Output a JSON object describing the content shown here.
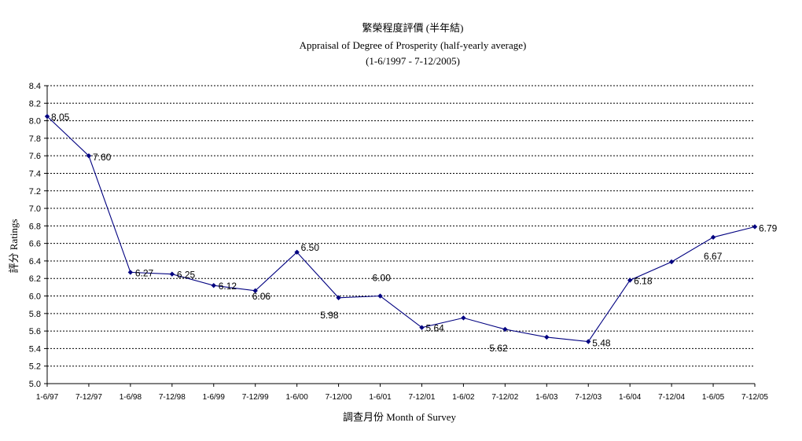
{
  "chart_data": {
    "type": "line",
    "title": "繁榮程度評價 (半年結)",
    "subtitle": "Appraisal of Degree of Prosperity (half-yearly average)",
    "subtitle2": "(1-6/1997 - 7-12/2005)",
    "xlabel": "調查月份 Month of Survey",
    "ylabel": "評分 Ratings",
    "ylim": [
      5.0,
      8.4
    ],
    "ytick_step": 0.2,
    "yticks": [
      "5.0",
      "5.2",
      "5.4",
      "5.6",
      "5.8",
      "6.0",
      "6.2",
      "6.4",
      "6.6",
      "6.8",
      "7.0",
      "7.2",
      "7.4",
      "7.6",
      "7.8",
      "8.0",
      "8.2",
      "8.4"
    ],
    "grid": true,
    "series_color": "#000080",
    "categories": [
      "1-6/97",
      "7-12/97",
      "1-6/98",
      "7-12/98",
      "1-6/99",
      "7-12/99",
      "1-6/00",
      "7-12/00",
      "1-6/01",
      "7-12/01",
      "1-6/02",
      "7-12/02",
      "1-6/03",
      "7-12/03",
      "1-6/04",
      "7-12/04",
      "1-6/05",
      "7-12/05"
    ],
    "series": [
      {
        "values": [
          8.05,
          7.6,
          6.27,
          6.25,
          6.12,
          6.06,
          6.5,
          5.98,
          6.0,
          5.64,
          5.75,
          5.62,
          5.53,
          5.48,
          6.18,
          6.39,
          6.67,
          6.79
        ],
        "data_labels": [
          "8.05",
          "7.60",
          "6.27",
          "6.25",
          "6.12",
          "6.06",
          "6.50",
          "5.98",
          "6.00",
          "5.64",
          "",
          "5.62",
          "",
          "5.48",
          "6.18",
          "",
          "6.67",
          "6.79"
        ]
      }
    ]
  }
}
